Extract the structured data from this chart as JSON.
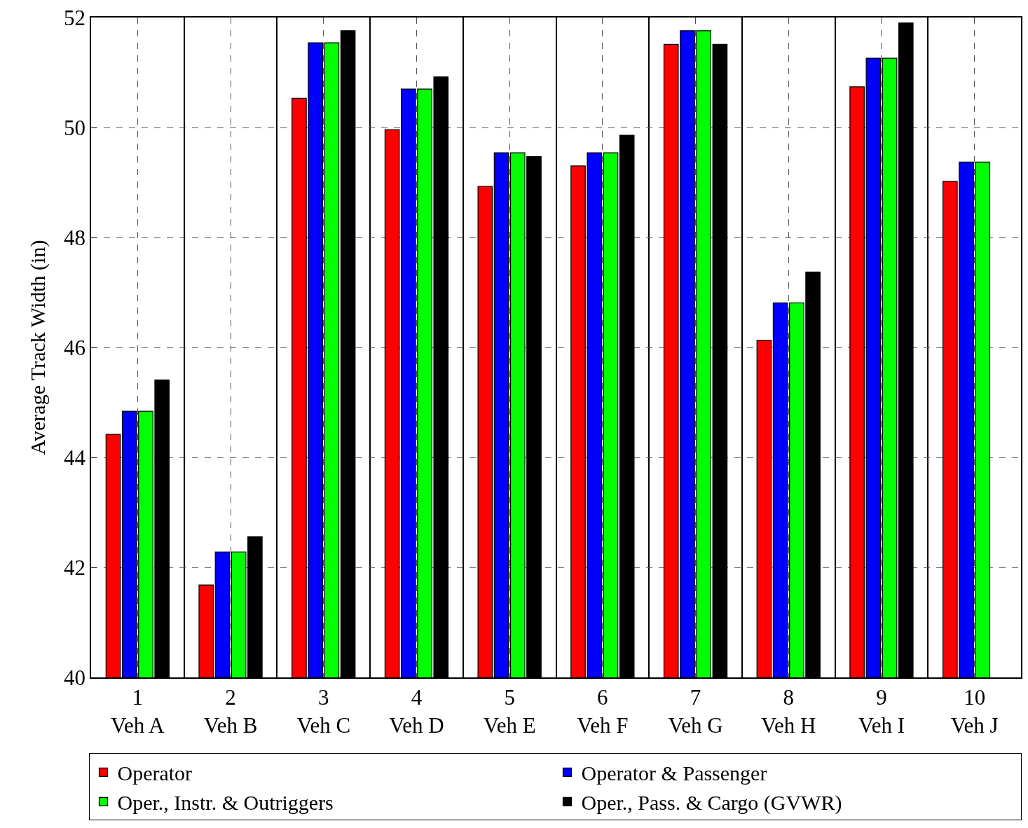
{
  "chart_data": {
    "type": "bar",
    "ylabel": "Average Track Width (in)",
    "categories": [
      "1\nVeh A",
      "2\nVeh B",
      "3\nVeh C",
      "4\nVeh D",
      "5\nVeh E",
      "6\nVeh F",
      "7\nVeh G",
      "8\nVeh H",
      "9\nVeh I",
      "10\nVeh J"
    ],
    "series": [
      {
        "name": "Operator",
        "color": "#ff0000",
        "values": [
          44.42,
          41.68,
          50.53,
          49.96,
          48.93,
          49.3,
          51.51,
          46.13,
          50.74,
          49.02
        ]
      },
      {
        "name": "Operator & Passenger",
        "color": "#0000ff",
        "values": [
          44.84,
          42.28,
          51.54,
          50.7,
          49.54,
          49.54,
          51.76,
          46.81,
          51.26,
          49.37
        ]
      },
      {
        "name": "Oper., Instr. & Outriggers",
        "color": "#00ff00",
        "values": [
          44.84,
          42.28,
          51.54,
          50.7,
          49.54,
          49.54,
          51.76,
          46.81,
          51.26,
          49.37
        ]
      },
      {
        "name": "Oper., Pass. & Cargo (GVWR)",
        "color": "#000000",
        "values": [
          45.41,
          42.56,
          51.76,
          50.92,
          49.47,
          49.86,
          51.51,
          47.37,
          51.9,
          null
        ]
      }
    ],
    "ylim": [
      40,
      52
    ],
    "yticks": [
      40,
      42,
      44,
      46,
      48,
      50,
      52
    ],
    "grid": true,
    "legend": "bottom"
  }
}
